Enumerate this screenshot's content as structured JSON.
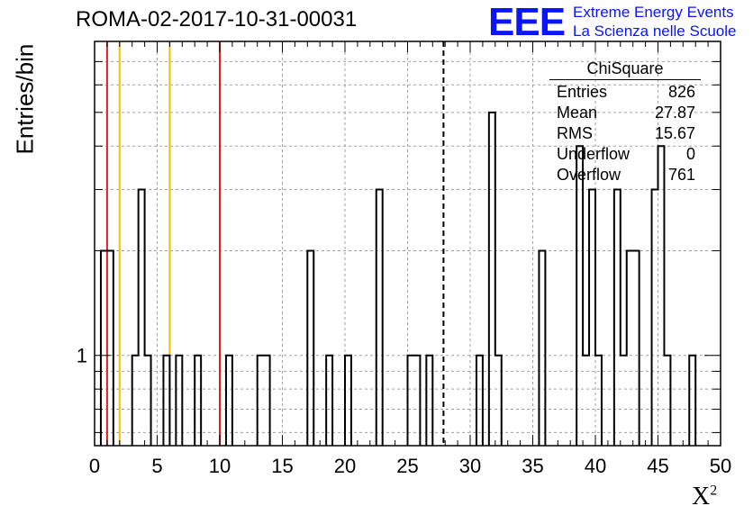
{
  "chart_data": {
    "type": "bar",
    "title": "ROMA-02-2017-10-31-00031",
    "xlabel": "X",
    "xlabel_sup": "2",
    "ylabel": "Entries/bin",
    "xlim": [
      0,
      50
    ],
    "ylim": [
      0.55,
      8
    ],
    "log_y": true,
    "x_ticks": [
      "0",
      "5",
      "10",
      "15",
      "20",
      "25",
      "30",
      "35",
      "40",
      "45",
      "50"
    ],
    "y_tick_labels": [
      {
        "value": 1,
        "label": "1"
      }
    ],
    "grid": true,
    "bin_width": 0.5,
    "bins": [
      {
        "x": 0.5,
        "y": 2
      },
      {
        "x": 1.0,
        "y": 2
      },
      {
        "x": 3.0,
        "y": 1
      },
      {
        "x": 3.5,
        "y": 3
      },
      {
        "x": 4.0,
        "y": 1
      },
      {
        "x": 5.5,
        "y": 1
      },
      {
        "x": 6.5,
        "y": 1
      },
      {
        "x": 8.0,
        "y": 1
      },
      {
        "x": 10.5,
        "y": 1
      },
      {
        "x": 13.0,
        "y": 1
      },
      {
        "x": 13.5,
        "y": 1
      },
      {
        "x": 17.0,
        "y": 2
      },
      {
        "x": 18.5,
        "y": 1
      },
      {
        "x": 20.0,
        "y": 1
      },
      {
        "x": 22.5,
        "y": 3
      },
      {
        "x": 25.0,
        "y": 1
      },
      {
        "x": 25.5,
        "y": 1
      },
      {
        "x": 26.5,
        "y": 1
      },
      {
        "x": 30.5,
        "y": 1
      },
      {
        "x": 31.5,
        "y": 5
      },
      {
        "x": 32.0,
        "y": 1
      },
      {
        "x": 35.5,
        "y": 2
      },
      {
        "x": 38.5,
        "y": 4
      },
      {
        "x": 39.0,
        "y": 1
      },
      {
        "x": 39.5,
        "y": 3
      },
      {
        "x": 40.0,
        "y": 1
      },
      {
        "x": 41.5,
        "y": 3
      },
      {
        "x": 42.0,
        "y": 1
      },
      {
        "x": 42.5,
        "y": 2
      },
      {
        "x": 43.0,
        "y": 2
      },
      {
        "x": 44.5,
        "y": 3
      },
      {
        "x": 45.0,
        "y": 4
      },
      {
        "x": 45.5,
        "y": 1
      },
      {
        "x": 47.5,
        "y": 1
      }
    ],
    "markers": [
      {
        "x": 1.0,
        "color": "#e02020",
        "style": "solid"
      },
      {
        "x": 2.0,
        "color": "#f5c000",
        "style": "solid"
      },
      {
        "x": 6.0,
        "color": "#f5c000",
        "style": "solid"
      },
      {
        "x": 10.0,
        "color": "#e02020",
        "style": "solid"
      },
      {
        "x": 27.87,
        "color": "#000000",
        "style": "dashed"
      }
    ],
    "stats": {
      "title": "ChiSquare",
      "rows": [
        {
          "label": "Entries",
          "value": "826"
        },
        {
          "label": "Mean",
          "value": "27.87"
        },
        {
          "label": "RMS",
          "value": "15.67"
        },
        {
          "label": "Underflow",
          "value": "0"
        },
        {
          "label": "Overflow",
          "value": "761"
        }
      ]
    }
  },
  "logo": {
    "mark": "EEE",
    "line1": "Extreme Energy Events",
    "line2": "La Scienza nelle Scuole",
    "color": "#0a14ff"
  }
}
